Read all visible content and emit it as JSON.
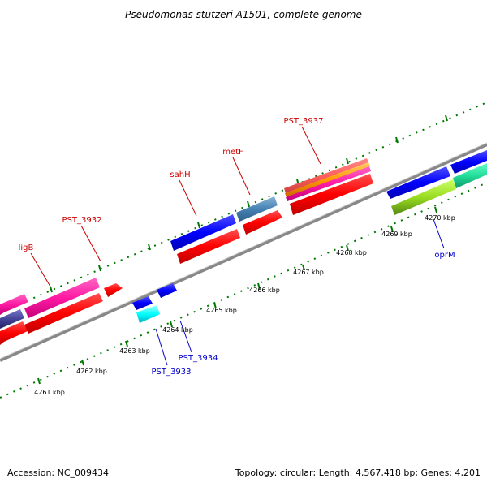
{
  "title": "Pseudomonas stutzeri A1501, complete genome",
  "footer": {
    "accession": "Accession: NC_009434",
    "summary": "Topology: circular; Length: 4,567,418 bp; Genes: 4,201"
  },
  "colors": {
    "top_label": "#cc0000",
    "bottom_label": "#0000cc",
    "dots": "#007700",
    "backbone": "#888888"
  },
  "gene_labels_top": [
    "ligB",
    "PST_3932",
    "sahH",
    "metF",
    "PST_3937"
  ],
  "gene_labels_bottom": [
    "PST_3933",
    "PST_3934",
    "oprM"
  ],
  "ruler_ticks": [
    "4261 kbp",
    "4262 kbp",
    "4263 kbp",
    "4264 kbp",
    "4265 kbp",
    "4266 kbp",
    "4267 kbp",
    "4268 kbp",
    "4269 kbp",
    "4270 kbp"
  ]
}
